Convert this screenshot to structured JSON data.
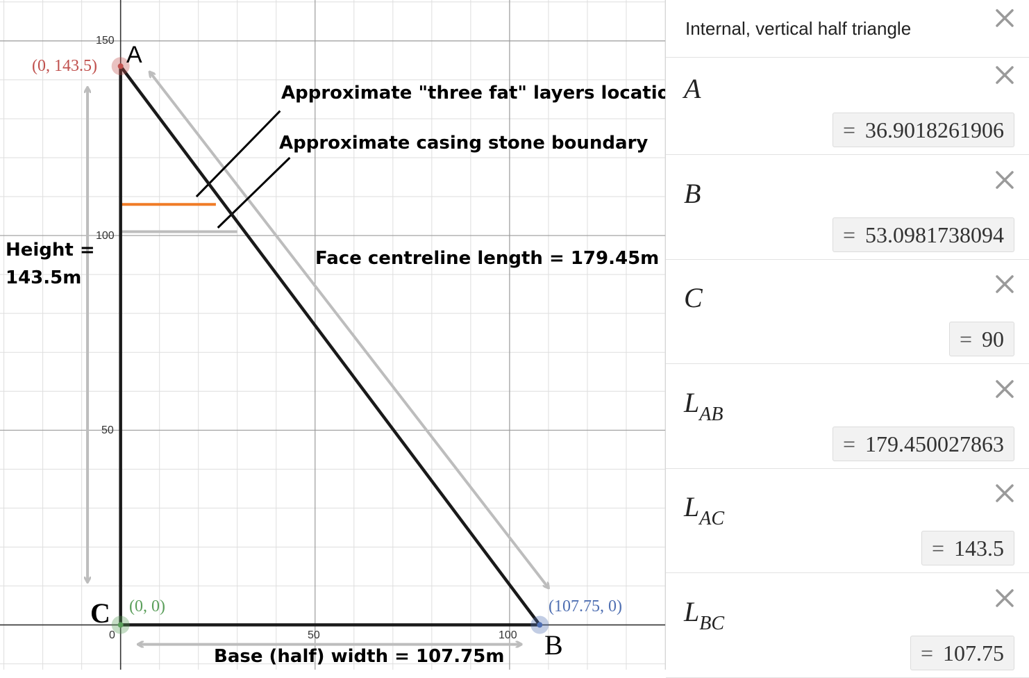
{
  "graph": {
    "ticks": {
      "x": [
        "0",
        "50",
        "100"
      ],
      "y": [
        "50",
        "100",
        "150"
      ]
    },
    "points": {
      "A": {
        "label": "A",
        "coord": "(0, 143.5)",
        "color": "#c0504d"
      },
      "B": {
        "label": "B",
        "coord": "(107.75, 0)",
        "color": "#4f6fb2"
      },
      "C": {
        "label": "C",
        "coord": "(0, 0)",
        "color": "#5a9e5a"
      }
    },
    "annotations": {
      "three_fat": "Approximate \"three fat\" layers location",
      "casing": "Approximate casing stone boundary",
      "face": "Face centreline length = 179.45m",
      "height_line1": "Height =",
      "height_line2": "143.5m",
      "base": "Base (half) width = 107.75m"
    },
    "colors": {
      "triangle": "#1a1a1a",
      "three_fat_line": "#f07c27",
      "casing_line": "#bdbdbd",
      "arrows": "#bdbdbd"
    }
  },
  "chart_data": {
    "type": "diagram",
    "points": [
      {
        "name": "A",
        "x": 0,
        "y": 143.5
      },
      {
        "name": "B",
        "x": 107.75,
        "y": 0
      },
      {
        "name": "C",
        "x": 0,
        "y": 0
      }
    ],
    "segments": [
      {
        "from": "A",
        "to": "C"
      },
      {
        "from": "C",
        "to": "B"
      },
      {
        "from": "A",
        "to": "B"
      }
    ],
    "horizontal_lines": [
      {
        "color": "#f07c27",
        "y": 108,
        "x_from": 0,
        "x_to": 24.5
      },
      {
        "color": "#bdbdbd",
        "y": 101,
        "x_from": 0,
        "x_to": 30
      }
    ],
    "pointer_lines": [
      {
        "x1": 41,
        "y1": 132,
        "x2": 19.5,
        "y2": 110
      },
      {
        "x1": 43.5,
        "y1": 120,
        "x2": 25,
        "y2": 102
      }
    ],
    "measure_arrows": [
      {
        "x1": -8.5,
        "y1": 138,
        "x2": -8.5,
        "y2": 11
      },
      {
        "x1": 7.5,
        "y1": 142,
        "x2": 110,
        "y2": 9.5
      },
      {
        "x1": 4.5,
        "y1": -5,
        "x2": 103,
        "y2": -5
      }
    ],
    "x_range": [
      -31,
      140
    ],
    "y_range": [
      -11.5,
      160.5
    ],
    "grid": true
  },
  "panel": {
    "title": "Internal, vertical half triangle",
    "expressions": [
      {
        "name": "A",
        "sub": "",
        "value": "36.9018261906"
      },
      {
        "name": "B",
        "sub": "",
        "value": "53.0981738094"
      },
      {
        "name": "C",
        "sub": "",
        "value": "90"
      },
      {
        "name": "L",
        "sub": "AB",
        "value": "179.450027863"
      },
      {
        "name": "L",
        "sub": "AC",
        "value": "143.5"
      },
      {
        "name": "L",
        "sub": "BC",
        "value": "107.75"
      }
    ],
    "eq": "="
  }
}
